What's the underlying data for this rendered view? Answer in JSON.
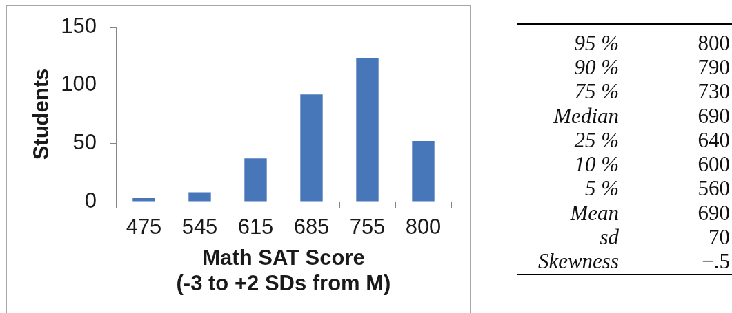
{
  "chart_data": [
    {
      "type": "bar",
      "categories": [
        "475",
        "545",
        "615",
        "685",
        "755",
        "800"
      ],
      "values": [
        3,
        8,
        37,
        92,
        123,
        52
      ],
      "color": "#4877b9",
      "ylim": [
        0,
        150
      ],
      "yticks": [
        0,
        50,
        100,
        150
      ],
      "ylabel": "Students",
      "xlabel": "Math SAT Score\n(-3 to +2 SDs from M)"
    },
    {
      "type": "other",
      "categories": [
        "95 %",
        "90 %",
        "75 %",
        "Median",
        "25 %",
        "10 %",
        "5 %",
        "Mean",
        "sd",
        "Skewness"
      ],
      "value_labels": [
        "800",
        "790",
        "730",
        "690",
        "640",
        "600",
        "560",
        "690",
        "70",
        "−.5"
      ]
    }
  ]
}
